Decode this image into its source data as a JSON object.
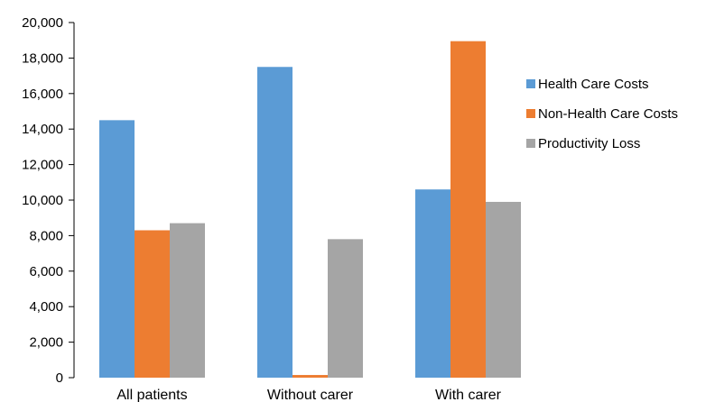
{
  "chart_data": {
    "type": "bar",
    "categories": [
      "All patients",
      "Without carer",
      "With carer"
    ],
    "series": [
      {
        "name": "Health Care Costs",
        "color": "#5b9bd5",
        "values": [
          14500,
          17500,
          10600
        ]
      },
      {
        "name": "Non-Health Care Costs",
        "color": "#ed7d31",
        "values": [
          8300,
          150,
          18950
        ]
      },
      {
        "name": "Productivity Loss",
        "color": "#a5a5a5",
        "values": [
          8700,
          7800,
          9900
        ]
      }
    ],
    "yticks": [
      "0",
      "2,000",
      "4,000",
      "6,000",
      "8,000",
      "10,000",
      "12,000",
      "14,000",
      "16,000",
      "18,000",
      "20,000"
    ],
    "ylim": [
      0,
      20000
    ],
    "grid": false,
    "legend_position": "right"
  }
}
